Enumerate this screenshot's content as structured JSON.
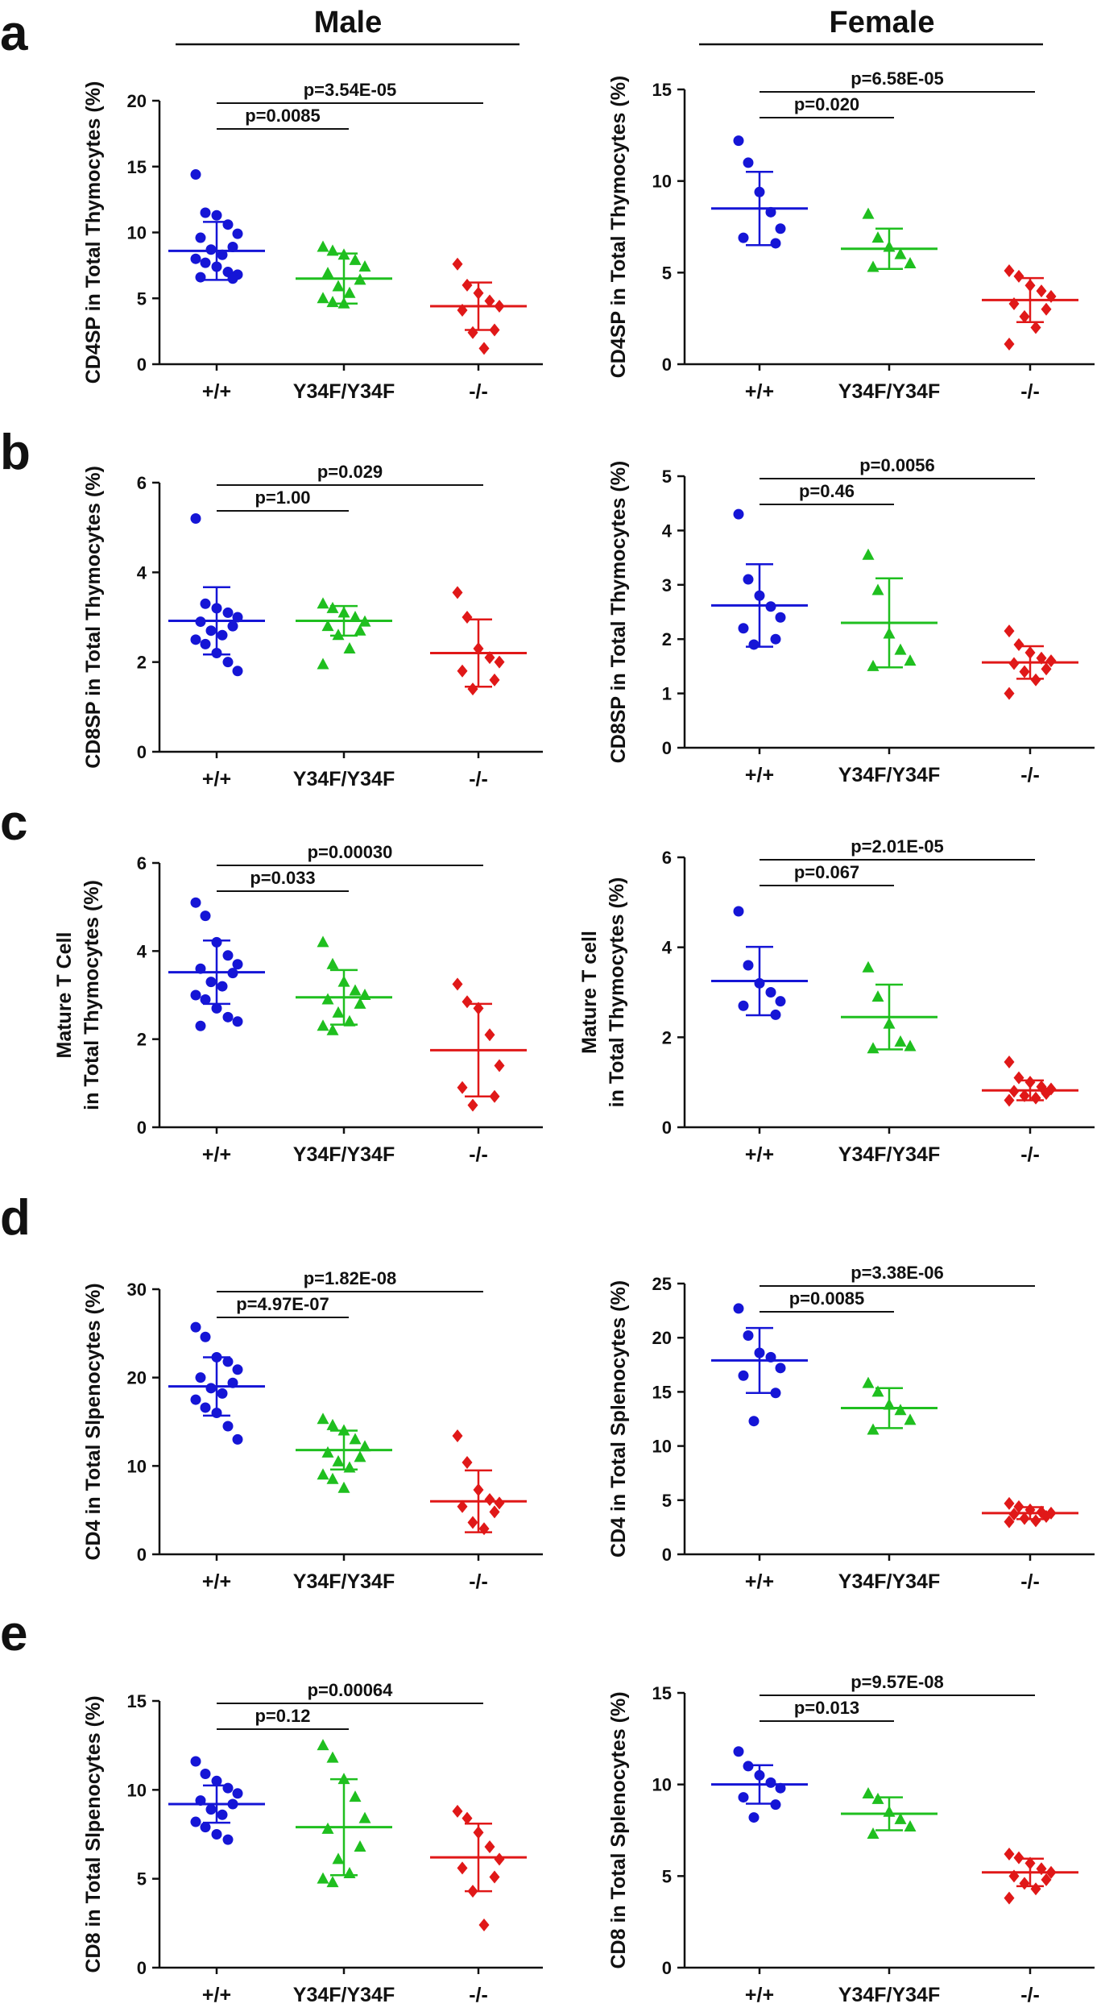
{
  "headers": {
    "left": "Male",
    "right": "Female"
  },
  "panel_letters": [
    "a",
    "b",
    "c",
    "d",
    "e"
  ],
  "colors": {
    "wt": "#1515d6",
    "ki": "#1fbf1f",
    "ko": "#e01818",
    "axis": "#111111"
  },
  "chart_data": [
    {
      "id": "a-male",
      "type": "scatter",
      "panel": "a",
      "sex": "Male",
      "ylabel": "CD4SP in Total Thymocytes (%)",
      "categories": [
        "+/+",
        "Y34F/Y34F",
        "-/-"
      ],
      "ylim": [
        0,
        20
      ],
      "yticks": [
        0,
        5,
        10,
        15,
        20
      ],
      "series": [
        {
          "name": "+/+",
          "color": "#1515d6",
          "marker": "circle",
          "mean": 8.6,
          "sd": 2.2,
          "values": [
            14.4,
            11.5,
            11.3,
            10.6,
            9.9,
            9.6,
            8.9,
            8.7,
            8.3,
            8.0,
            7.7,
            7.4,
            7.0,
            6.8,
            6.6,
            6.5
          ]
        },
        {
          "name": "Y34F/Y34F",
          "color": "#1fbf1f",
          "marker": "triangle",
          "mean": 6.5,
          "sd": 1.9,
          "values": [
            8.9,
            8.6,
            8.3,
            7.9,
            7.4,
            6.9,
            6.4,
            5.9,
            5.4,
            5.0,
            4.7,
            4.6
          ]
        },
        {
          "name": "-/-",
          "color": "#e01818",
          "marker": "diamond",
          "mean": 4.4,
          "sd": 1.8,
          "values": [
            7.6,
            6.0,
            5.4,
            4.8,
            4.4,
            4.1,
            2.6,
            2.4,
            1.2
          ]
        }
      ],
      "comparisons": [
        {
          "label": "p=0.0085",
          "from": 0,
          "to": 1
        },
        {
          "label": "p=3.54E-05",
          "from": 0,
          "to": 2
        }
      ]
    },
    {
      "id": "a-female",
      "type": "scatter",
      "panel": "a",
      "sex": "Female",
      "ylabel": "CD4SP in Total Thymocytes (%)",
      "categories": [
        "+/+",
        "Y34F/Y34F",
        "-/-"
      ],
      "ylim": [
        0,
        15
      ],
      "yticks": [
        0,
        5,
        10,
        15
      ],
      "series": [
        {
          "name": "+/+",
          "color": "#1515d6",
          "marker": "circle",
          "mean": 8.5,
          "sd": 2.0,
          "values": [
            12.2,
            11.0,
            9.4,
            8.3,
            7.4,
            6.9,
            6.6
          ]
        },
        {
          "name": "Y34F/Y34F",
          "color": "#1fbf1f",
          "marker": "triangle",
          "mean": 6.3,
          "sd": 1.1,
          "values": [
            8.2,
            6.9,
            6.4,
            6.0,
            5.5,
            5.3
          ]
        },
        {
          "name": "-/-",
          "color": "#e01818",
          "marker": "diamond",
          "mean": 3.5,
          "sd": 1.2,
          "values": [
            5.1,
            4.8,
            4.3,
            4.0,
            3.7,
            3.3,
            3.0,
            2.6,
            2.0,
            1.1
          ]
        }
      ],
      "comparisons": [
        {
          "label": "p=0.020",
          "from": 0,
          "to": 1
        },
        {
          "label": "p=6.58E-05",
          "from": 0,
          "to": 2
        }
      ]
    },
    {
      "id": "b-male",
      "type": "scatter",
      "panel": "b",
      "sex": "Male",
      "ylabel": "CD8SP in Total Thymocytes (%)",
      "categories": [
        "+/+",
        "Y34F/Y34F",
        "-/-"
      ],
      "ylim": [
        0,
        6
      ],
      "yticks": [
        0,
        2,
        4,
        6
      ],
      "series": [
        {
          "name": "+/+",
          "color": "#1515d6",
          "marker": "circle",
          "mean": 2.92,
          "sd": 0.75,
          "values": [
            5.2,
            3.3,
            3.2,
            3.1,
            3.0,
            2.9,
            2.8,
            2.7,
            2.6,
            2.5,
            2.4,
            2.2,
            2.0,
            1.8
          ]
        },
        {
          "name": "Y34F/Y34F",
          "color": "#1fbf1f",
          "marker": "triangle",
          "mean": 2.92,
          "sd": 0.33,
          "values": [
            3.3,
            3.2,
            3.1,
            3.0,
            2.9,
            2.8,
            2.7,
            2.6,
            2.3,
            1.95
          ]
        },
        {
          "name": "-/-",
          "color": "#e01818",
          "marker": "diamond",
          "mean": 2.2,
          "sd": 0.75,
          "values": [
            3.55,
            3.0,
            2.3,
            2.1,
            2.0,
            1.8,
            1.6,
            1.4
          ]
        }
      ],
      "comparisons": [
        {
          "label": "p=1.00",
          "from": 0,
          "to": 1
        },
        {
          "label": "p=0.029",
          "from": 0,
          "to": 2
        }
      ]
    },
    {
      "id": "b-female",
      "type": "scatter",
      "panel": "b",
      "sex": "Female",
      "ylabel": "CD8SP in Total Thymocytes (%)",
      "categories": [
        "+/+",
        "Y34F/Y34F",
        "-/-"
      ],
      "ylim": [
        0,
        5
      ],
      "yticks": [
        0,
        1,
        2,
        3,
        4,
        5
      ],
      "series": [
        {
          "name": "+/+",
          "color": "#1515d6",
          "marker": "circle",
          "mean": 2.62,
          "sd": 0.76,
          "values": [
            4.3,
            3.1,
            2.8,
            2.6,
            2.4,
            2.2,
            2.0,
            1.9
          ]
        },
        {
          "name": "Y34F/Y34F",
          "color": "#1fbf1f",
          "marker": "triangle",
          "mean": 2.3,
          "sd": 0.82,
          "values": [
            3.55,
            2.9,
            2.1,
            1.8,
            1.6,
            1.5
          ]
        },
        {
          "name": "-/-",
          "color": "#e01818",
          "marker": "diamond",
          "mean": 1.57,
          "sd": 0.3,
          "values": [
            2.15,
            1.9,
            1.75,
            1.65,
            1.6,
            1.55,
            1.45,
            1.4,
            1.25,
            1.0
          ]
        }
      ],
      "comparisons": [
        {
          "label": "p=0.46",
          "from": 0,
          "to": 1
        },
        {
          "label": "p=0.0056",
          "from": 0,
          "to": 2
        }
      ]
    },
    {
      "id": "c-male",
      "type": "scatter",
      "panel": "c",
      "sex": "Male",
      "ylabel": [
        "Mature T Cell",
        "in Total Thymocytes (%)"
      ],
      "categories": [
        "+/+",
        "Y34F/Y34F",
        "-/-"
      ],
      "ylim": [
        0,
        6
      ],
      "yticks": [
        0,
        2,
        4,
        6
      ],
      "series": [
        {
          "name": "+/+",
          "color": "#1515d6",
          "marker": "circle",
          "mean": 3.52,
          "sd": 0.72,
          "values": [
            5.1,
            4.8,
            4.2,
            3.9,
            3.7,
            3.6,
            3.5,
            3.3,
            3.2,
            3.0,
            2.9,
            2.7,
            2.5,
            2.4,
            2.3
          ]
        },
        {
          "name": "Y34F/Y34F",
          "color": "#1fbf1f",
          "marker": "triangle",
          "mean": 2.95,
          "sd": 0.62,
          "values": [
            4.2,
            3.7,
            3.3,
            3.1,
            3.0,
            2.9,
            2.8,
            2.6,
            2.4,
            2.3,
            2.2
          ]
        },
        {
          "name": "-/-",
          "color": "#e01818",
          "marker": "diamond",
          "mean": 1.75,
          "sd": 1.05,
          "values": [
            3.25,
            2.85,
            2.7,
            2.1,
            1.4,
            0.9,
            0.7,
            0.5
          ]
        }
      ],
      "comparisons": [
        {
          "label": "p=0.033",
          "from": 0,
          "to": 1
        },
        {
          "label": "p=0.00030",
          "from": 0,
          "to": 2
        }
      ]
    },
    {
      "id": "c-female",
      "type": "scatter",
      "panel": "c",
      "sex": "Female",
      "ylabel": [
        "Mature T cell",
        "in Total Thymocytes (%)"
      ],
      "categories": [
        "+/+",
        "Y34F/Y34F",
        "-/-"
      ],
      "ylim": [
        0,
        6
      ],
      "yticks": [
        0,
        2,
        4,
        6
      ],
      "series": [
        {
          "name": "+/+",
          "color": "#1515d6",
          "marker": "circle",
          "mean": 3.25,
          "sd": 0.76,
          "values": [
            4.8,
            3.6,
            3.2,
            3.0,
            2.8,
            2.7,
            2.5
          ]
        },
        {
          "name": "Y34F/Y34F",
          "color": "#1fbf1f",
          "marker": "triangle",
          "mean": 2.45,
          "sd": 0.72,
          "values": [
            3.55,
            2.9,
            2.3,
            1.9,
            1.8,
            1.75
          ]
        },
        {
          "name": "-/-",
          "color": "#e01818",
          "marker": "diamond",
          "mean": 0.82,
          "sd": 0.22,
          "values": [
            1.45,
            1.1,
            1.0,
            0.9,
            0.85,
            0.8,
            0.75,
            0.7,
            0.65,
            0.6
          ]
        }
      ],
      "comparisons": [
        {
          "label": "p=0.067",
          "from": 0,
          "to": 1
        },
        {
          "label": "p=2.01E-05",
          "from": 0,
          "to": 2
        }
      ]
    },
    {
      "id": "d-male",
      "type": "scatter",
      "panel": "d",
      "sex": "Male",
      "ylabel": "CD4 in Total Slpenocytes (%)",
      "categories": [
        "+/+",
        "Y34F/Y34F",
        "-/-"
      ],
      "ylim": [
        0,
        30
      ],
      "yticks": [
        0,
        10,
        20,
        30
      ],
      "series": [
        {
          "name": "+/+",
          "color": "#1515d6",
          "marker": "circle",
          "mean": 19.0,
          "sd": 3.3,
          "values": [
            25.7,
            24.6,
            22.3,
            21.8,
            20.9,
            20.0,
            19.4,
            18.8,
            18.2,
            17.5,
            16.6,
            16.0,
            14.5,
            13.0
          ]
        },
        {
          "name": "Y34F/Y34F",
          "color": "#1fbf1f",
          "marker": "triangle",
          "mean": 11.8,
          "sd": 2.2,
          "values": [
            15.3,
            14.6,
            14.0,
            13.0,
            12.2,
            11.5,
            11.0,
            10.5,
            9.8,
            9.0,
            8.5,
            7.5
          ]
        },
        {
          "name": "-/-",
          "color": "#e01818",
          "marker": "diamond",
          "mean": 6.0,
          "sd": 3.5,
          "values": [
            13.4,
            10.4,
            7.3,
            6.2,
            5.8,
            5.4,
            4.8,
            3.6,
            2.9
          ]
        }
      ],
      "comparisons": [
        {
          "label": "p=4.97E-07",
          "from": 0,
          "to": 1
        },
        {
          "label": "p=1.82E-08",
          "from": 0,
          "to": 2
        }
      ]
    },
    {
      "id": "d-female",
      "type": "scatter",
      "panel": "d",
      "sex": "Female",
      "ylabel": "CD4 in Total Splenocytes (%)",
      "categories": [
        "+/+",
        "Y34F/Y34F",
        "-/-"
      ],
      "ylim": [
        0,
        25
      ],
      "yticks": [
        0,
        5,
        10,
        15,
        20,
        25
      ],
      "series": [
        {
          "name": "+/+",
          "color": "#1515d6",
          "marker": "circle",
          "mean": 17.9,
          "sd": 3.0,
          "values": [
            22.7,
            20.2,
            18.6,
            18.2,
            17.2,
            16.5,
            14.9,
            12.3
          ]
        },
        {
          "name": "Y34F/Y34F",
          "color": "#1fbf1f",
          "marker": "triangle",
          "mean": 13.5,
          "sd": 1.85,
          "values": [
            15.8,
            15.0,
            13.8,
            13.3,
            12.4,
            11.5
          ]
        },
        {
          "name": "-/-",
          "color": "#e01818",
          "marker": "diamond",
          "mean": 3.8,
          "sd": 0.55,
          "values": [
            4.7,
            4.4,
            4.1,
            3.9,
            3.8,
            3.7,
            3.5,
            3.3,
            3.1,
            3.0
          ]
        }
      ],
      "comparisons": [
        {
          "label": "p=0.0085",
          "from": 0,
          "to": 1
        },
        {
          "label": "p=3.38E-06",
          "from": 0,
          "to": 2
        }
      ]
    },
    {
      "id": "e-male",
      "type": "scatter",
      "panel": "e",
      "sex": "Male",
      "ylabel": "CD8 in Total Slpenocytes (%)",
      "categories": [
        "+/+",
        "Y34F/Y34F",
        "-/-"
      ],
      "ylim": [
        0,
        15
      ],
      "yticks": [
        0,
        5,
        10,
        15
      ],
      "series": [
        {
          "name": "+/+",
          "color": "#1515d6",
          "marker": "circle",
          "mean": 9.2,
          "sd": 1.05,
          "values": [
            11.6,
            10.9,
            10.5,
            10.1,
            9.8,
            9.4,
            9.2,
            8.9,
            8.6,
            8.2,
            7.9,
            7.5,
            7.2
          ]
        },
        {
          "name": "Y34F/Y34F",
          "color": "#1fbf1f",
          "marker": "triangle",
          "mean": 7.9,
          "sd": 2.7,
          "values": [
            12.5,
            11.8,
            10.6,
            9.6,
            8.4,
            7.8,
            6.8,
            6.1,
            5.3,
            5.0,
            4.8
          ]
        },
        {
          "name": "-/-",
          "color": "#e01818",
          "marker": "diamond",
          "mean": 6.2,
          "sd": 1.9,
          "values": [
            8.8,
            8.4,
            7.6,
            6.8,
            6.1,
            5.6,
            5.1,
            4.3,
            2.4
          ]
        }
      ],
      "comparisons": [
        {
          "label": "p=0.12",
          "from": 0,
          "to": 1
        },
        {
          "label": "p=0.00064",
          "from": 0,
          "to": 2
        }
      ]
    },
    {
      "id": "e-female",
      "type": "scatter",
      "panel": "e",
      "sex": "Female",
      "ylabel": "CD8 in Total Splenocytes (%)",
      "categories": [
        "+/+",
        "Y34F/Y34F",
        "-/-"
      ],
      "ylim": [
        0,
        15
      ],
      "yticks": [
        0,
        5,
        10,
        15
      ],
      "series": [
        {
          "name": "+/+",
          "color": "#1515d6",
          "marker": "circle",
          "mean": 10.0,
          "sd": 1.05,
          "values": [
            11.8,
            11.0,
            10.5,
            10.1,
            9.8,
            9.3,
            8.9,
            8.2
          ]
        },
        {
          "name": "Y34F/Y34F",
          "color": "#1fbf1f",
          "marker": "triangle",
          "mean": 8.4,
          "sd": 0.9,
          "values": [
            9.5,
            9.2,
            8.5,
            8.1,
            7.7,
            7.3
          ]
        },
        {
          "name": "-/-",
          "color": "#e01818",
          "marker": "diamond",
          "mean": 5.2,
          "sd": 0.75,
          "values": [
            6.2,
            6.0,
            5.7,
            5.4,
            5.2,
            5.0,
            4.8,
            4.6,
            4.3,
            3.8
          ]
        }
      ],
      "comparisons": [
        {
          "label": "p=0.013",
          "from": 0,
          "to": 1
        },
        {
          "label": "p=9.57E-08",
          "from": 0,
          "to": 2
        }
      ]
    }
  ]
}
